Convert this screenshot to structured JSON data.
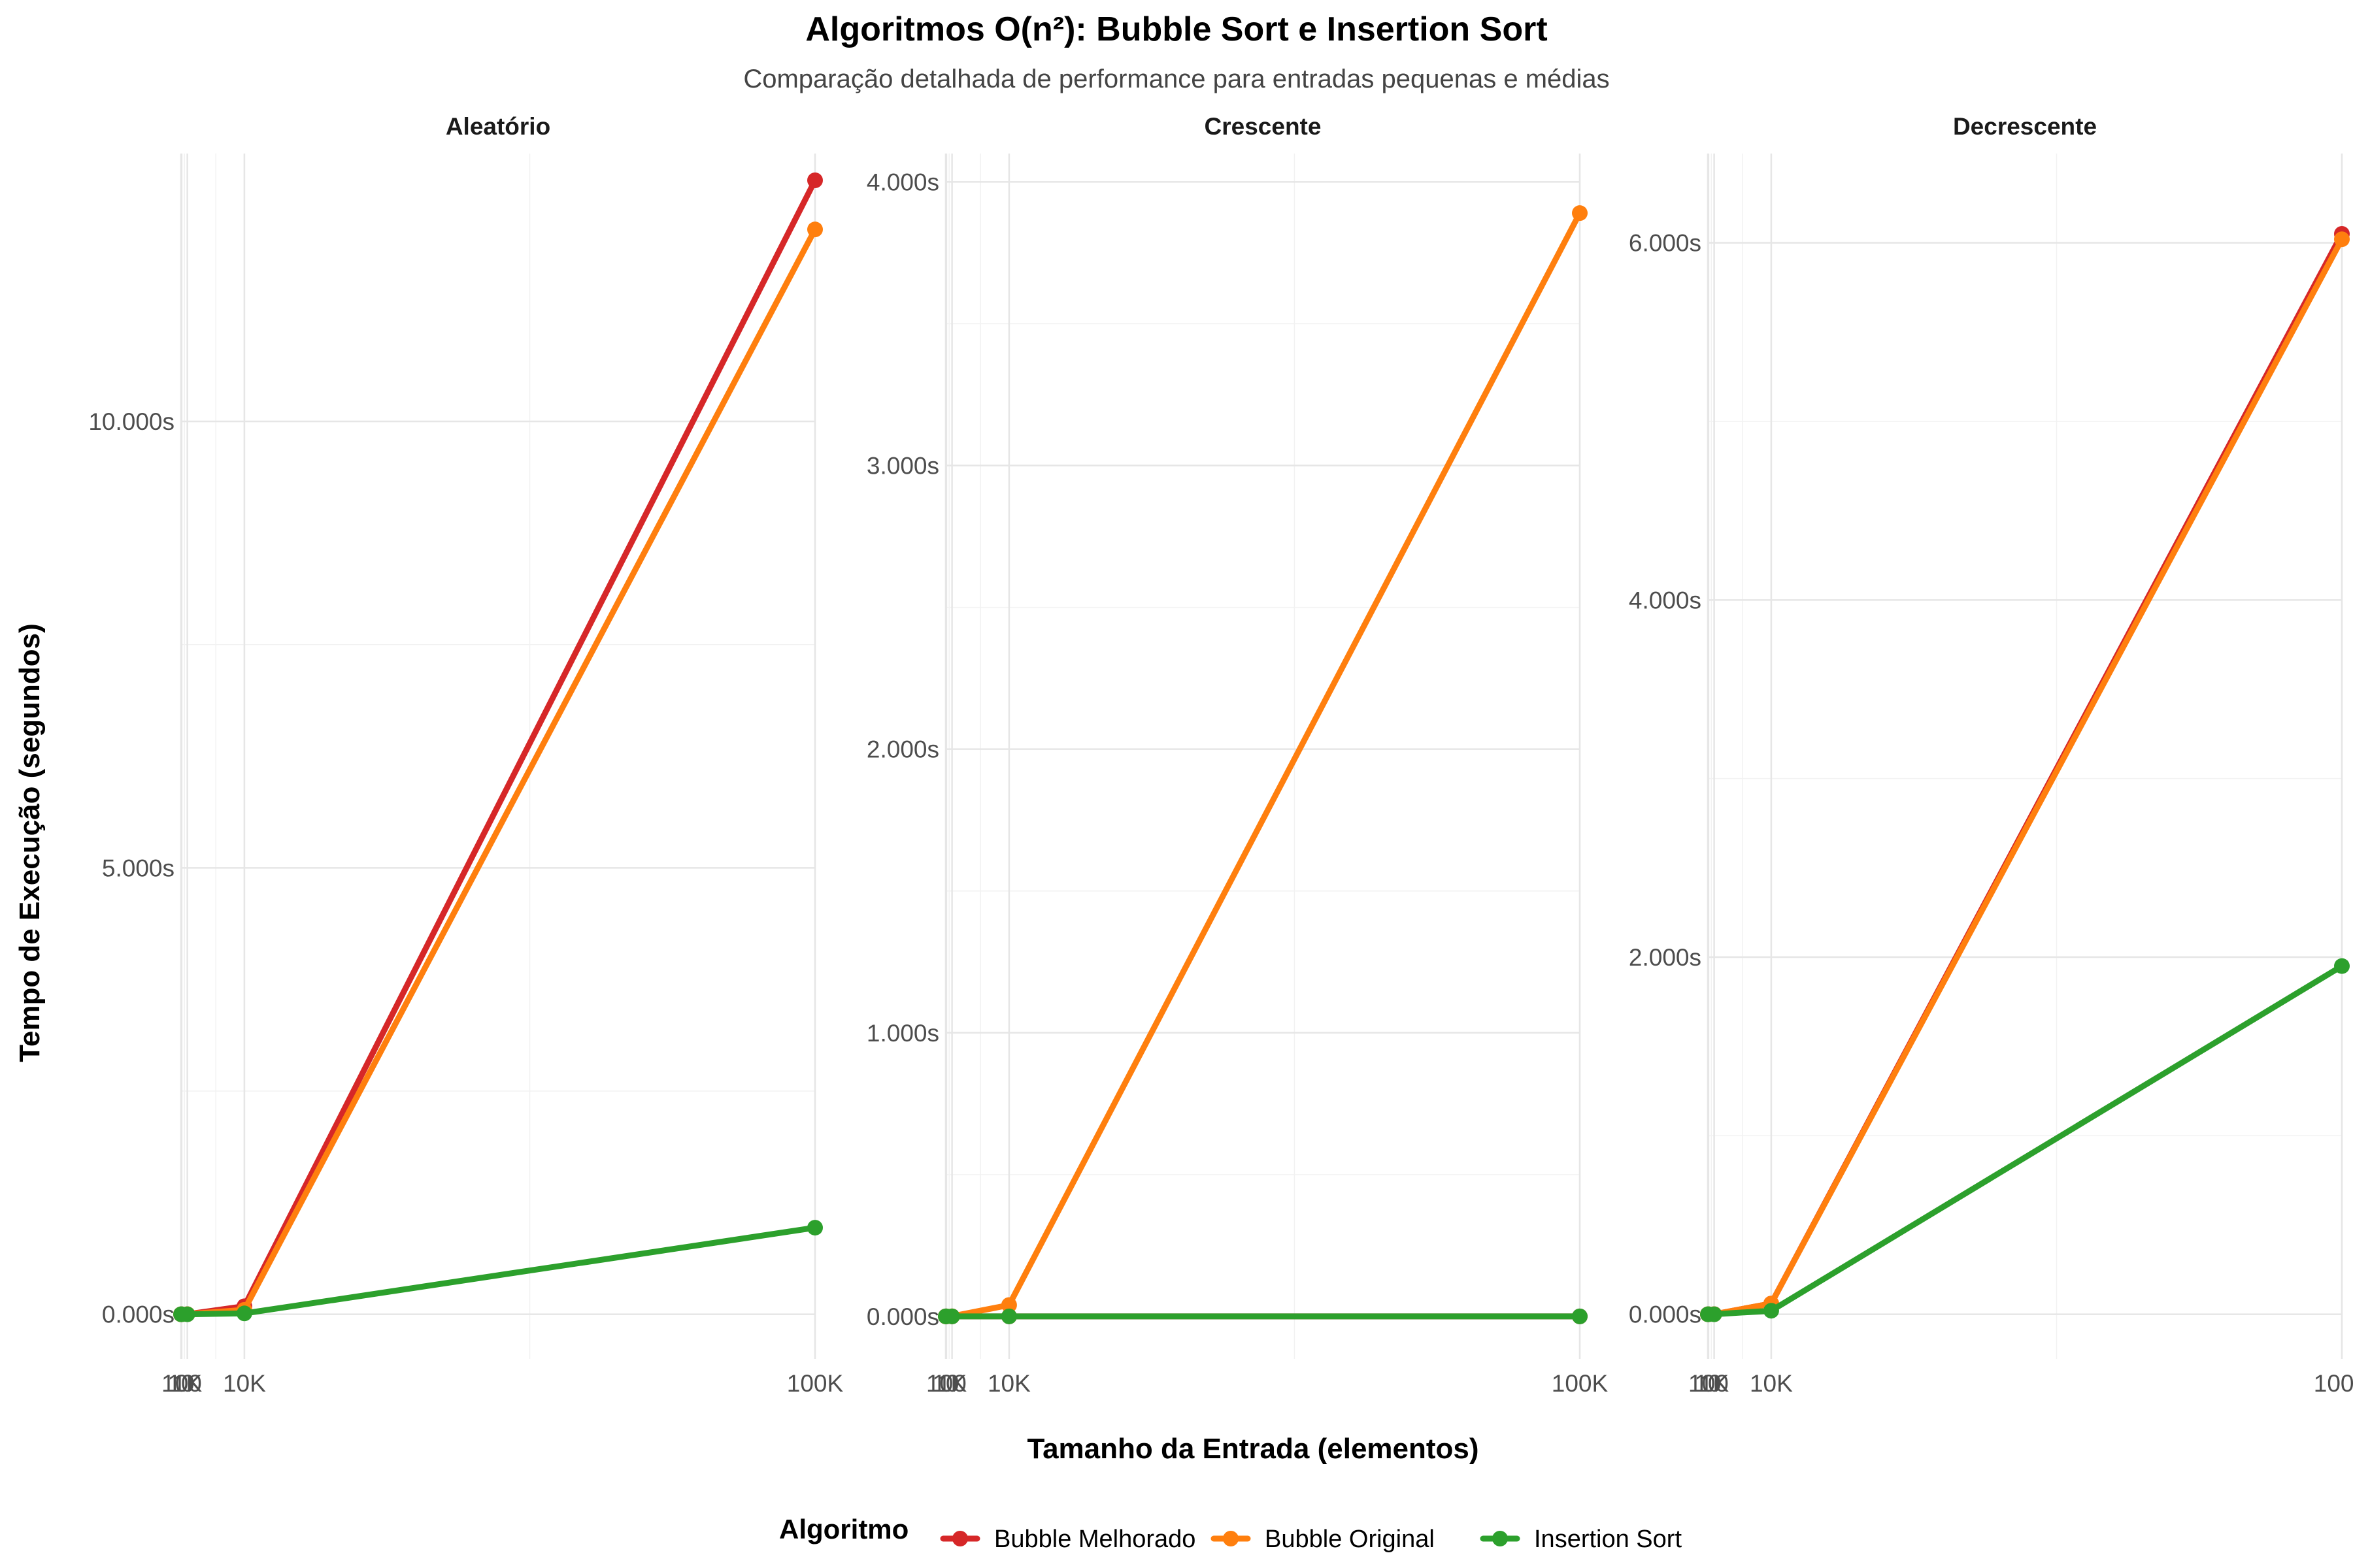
{
  "chart_data": {
    "type": "line",
    "title": "Algoritmos O(n²): Bubble Sort e Insertion Sort",
    "subtitle": "Comparação detalhada de performance para entradas pequenas e médias",
    "xlabel": "Tamanho da Entrada (elementos)",
    "ylabel": "Tempo de Execução (segundos)",
    "legend": {
      "title": "Algoritmo",
      "placement": "bottom"
    },
    "grid": true,
    "x": [
      10,
      100,
      1000,
      10000,
      100000
    ],
    "x_tick_values": [
      10,
      100,
      1000,
      10000,
      100000
    ],
    "x_tick_labels": [
      "10",
      "100",
      "1K",
      "10K",
      "100K"
    ],
    "xlim": [
      10,
      100000
    ],
    "colors": {
      "Bubble Melhorado": "#d62728",
      "Bubble Original": "#ff7f0e",
      "Insertion Sort": "#2ca02c"
    },
    "panels": [
      {
        "name": "Aleatório",
        "ylim": [
          -0.5,
          13.0
        ],
        "y_ticks": [
          0,
          5,
          10
        ],
        "y_tick_labels": [
          "0.000s",
          "5.000s",
          "10.000s"
        ],
        "series": [
          {
            "name": "Bubble Melhorado",
            "values": [
              0.0,
              0.0,
              0.001,
              0.09,
              12.7
            ]
          },
          {
            "name": "Bubble Original",
            "values": [
              0.0,
              0.0,
              0.001,
              0.05,
              12.15
            ]
          },
          {
            "name": "Insertion Sort",
            "values": [
              0.0,
              0.0,
              0.0,
              0.01,
              0.97
            ]
          }
        ]
      },
      {
        "name": "Crescente",
        "ylim": [
          -0.15,
          4.1
        ],
        "y_ticks": [
          0,
          1,
          2,
          3,
          4
        ],
        "y_tick_labels": [
          "0.000s",
          "1.000s",
          "2.000s",
          "3.000s",
          "4.000s"
        ],
        "series": [
          {
            "name": "Bubble Melhorado",
            "values": [
              0.0,
              0.0,
              0.0,
              0.0,
              0.0
            ]
          },
          {
            "name": "Bubble Original",
            "values": [
              0.0,
              0.0,
              0.0004,
              0.04,
              3.89
            ]
          },
          {
            "name": "Insertion Sort",
            "values": [
              0.0,
              0.0,
              0.0,
              0.0,
              0.0
            ]
          }
        ]
      },
      {
        "name": "Decrescente",
        "ylim": [
          -0.25,
          6.5
        ],
        "y_ticks": [
          0,
          2,
          4,
          6
        ],
        "y_tick_labels": [
          "0.000s",
          "2.000s",
          "4.000s",
          "6.000s"
        ],
        "series": [
          {
            "name": "Bubble Melhorado",
            "values": [
              0.0,
              0.0,
              0.0006,
              0.06,
              6.05
            ]
          },
          {
            "name": "Bubble Original",
            "values": [
              0.0,
              0.0,
              0.0006,
              0.06,
              6.02
            ]
          },
          {
            "name": "Insertion Sort",
            "values": [
              0.0,
              0.0,
              0.0002,
              0.02,
              1.95
            ]
          }
        ]
      }
    ]
  }
}
